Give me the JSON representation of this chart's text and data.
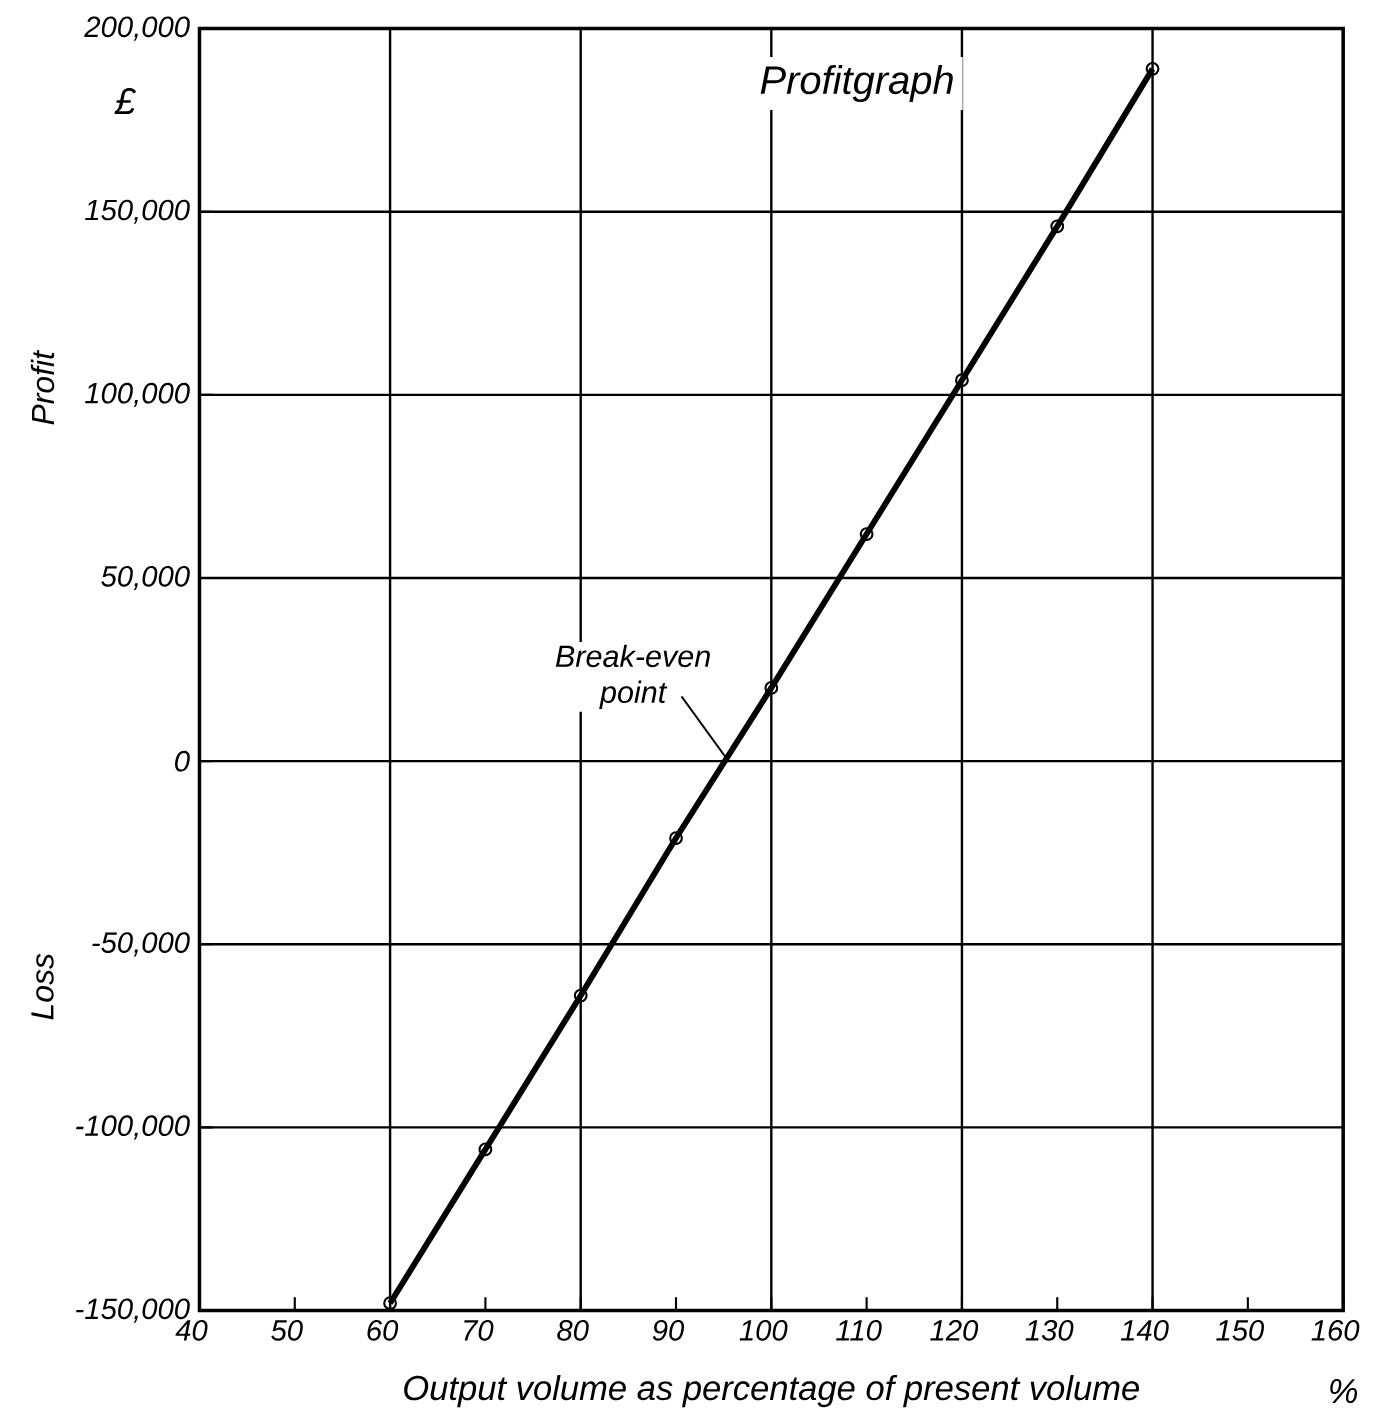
{
  "chart_data": {
    "type": "line",
    "title": "Profitgraph",
    "xlabel": "Output volume as percentage of present volume",
    "ylabel": "Profit",
    "annotations": [
      "£",
      "Loss",
      "%",
      {
        "text": "Break-even point",
        "x": 95.5,
        "y": 0
      }
    ],
    "x": [
      60,
      70,
      80,
      90,
      100,
      110,
      120,
      130,
      140
    ],
    "series": [
      {
        "color": "#000000",
        "values": [
          -148000,
          -106000,
          -64000,
          -21000,
          20000,
          62000,
          104000,
          146000,
          189000
        ]
      }
    ],
    "xlim": [
      40,
      160
    ],
    "ylim": [
      -150000,
      200000
    ],
    "xticks": [
      40,
      50,
      60,
      70,
      80,
      90,
      100,
      110,
      120,
      130,
      140,
      150,
      160
    ],
    "yticks": [
      {
        "value": -150000,
        "label": "-150,000"
      },
      {
        "value": -100000,
        "label": "-100,000"
      },
      {
        "value": -50000,
        "label": "-50,000"
      },
      0,
      {
        "value": 50000,
        "label": "50,000"
      },
      {
        "value": 100000,
        "label": "100,000"
      },
      {
        "value": 150000,
        "label": "150,000"
      },
      {
        "value": 200000,
        "label": "200,000"
      }
    ],
    "grid": true,
    "marker": "circle",
    "line_style": "solid"
  }
}
